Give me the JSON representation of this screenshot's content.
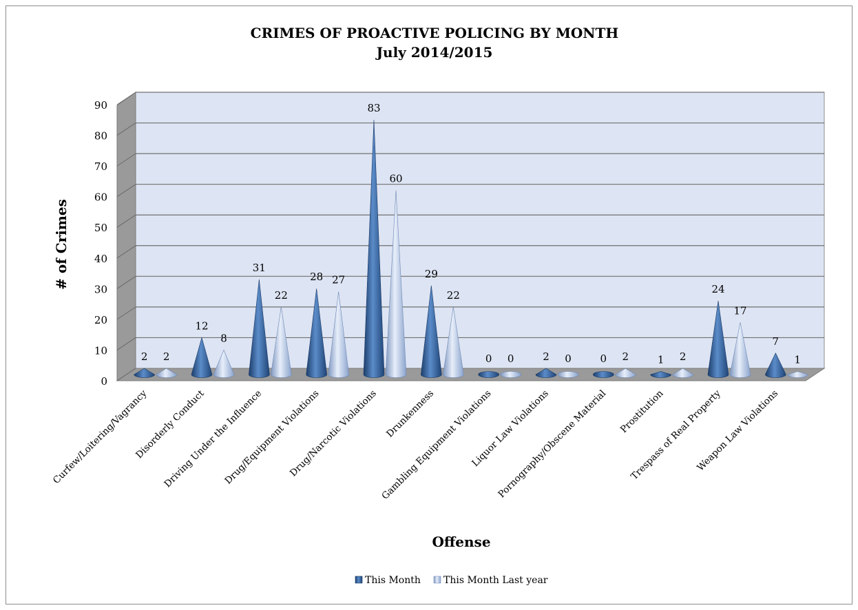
{
  "chart_data": {
    "type": "bar",
    "style": "3d-cone",
    "title": "CRIMES OF PROACTIVE POLICING BY MONTH",
    "subtitle": "July 2014/2015",
    "xlabel": "Offense",
    "ylabel": "# of Crimes",
    "ylim": [
      0,
      90
    ],
    "yticks": [
      0,
      10,
      20,
      30,
      40,
      50,
      60,
      70,
      80,
      90
    ],
    "grid": true,
    "legend_position": "bottom",
    "categories": [
      "Curfew/Loitering/Vagrancy",
      "Disorderly Conduct",
      "Driving Under the Influence",
      "Drug/Equipment Violations",
      "Drug/Narcotic Violations",
      "Drunkenness",
      "Gambling Equipment Violations",
      "Liquor Law Violations",
      "Pornography/Obscene Material",
      "Prostitution",
      "Trespass of Real Property",
      "Weapon Law Violations"
    ],
    "series": [
      {
        "name": "This Month",
        "color": "#2f5f9e",
        "values": [
          2,
          12,
          31,
          28,
          83,
          29,
          0,
          2,
          0,
          1,
          24,
          7
        ]
      },
      {
        "name": "This Month Last year",
        "color": "#a9bfe3",
        "values": [
          2,
          8,
          22,
          27,
          60,
          22,
          0,
          0,
          2,
          2,
          17,
          1
        ]
      }
    ]
  }
}
